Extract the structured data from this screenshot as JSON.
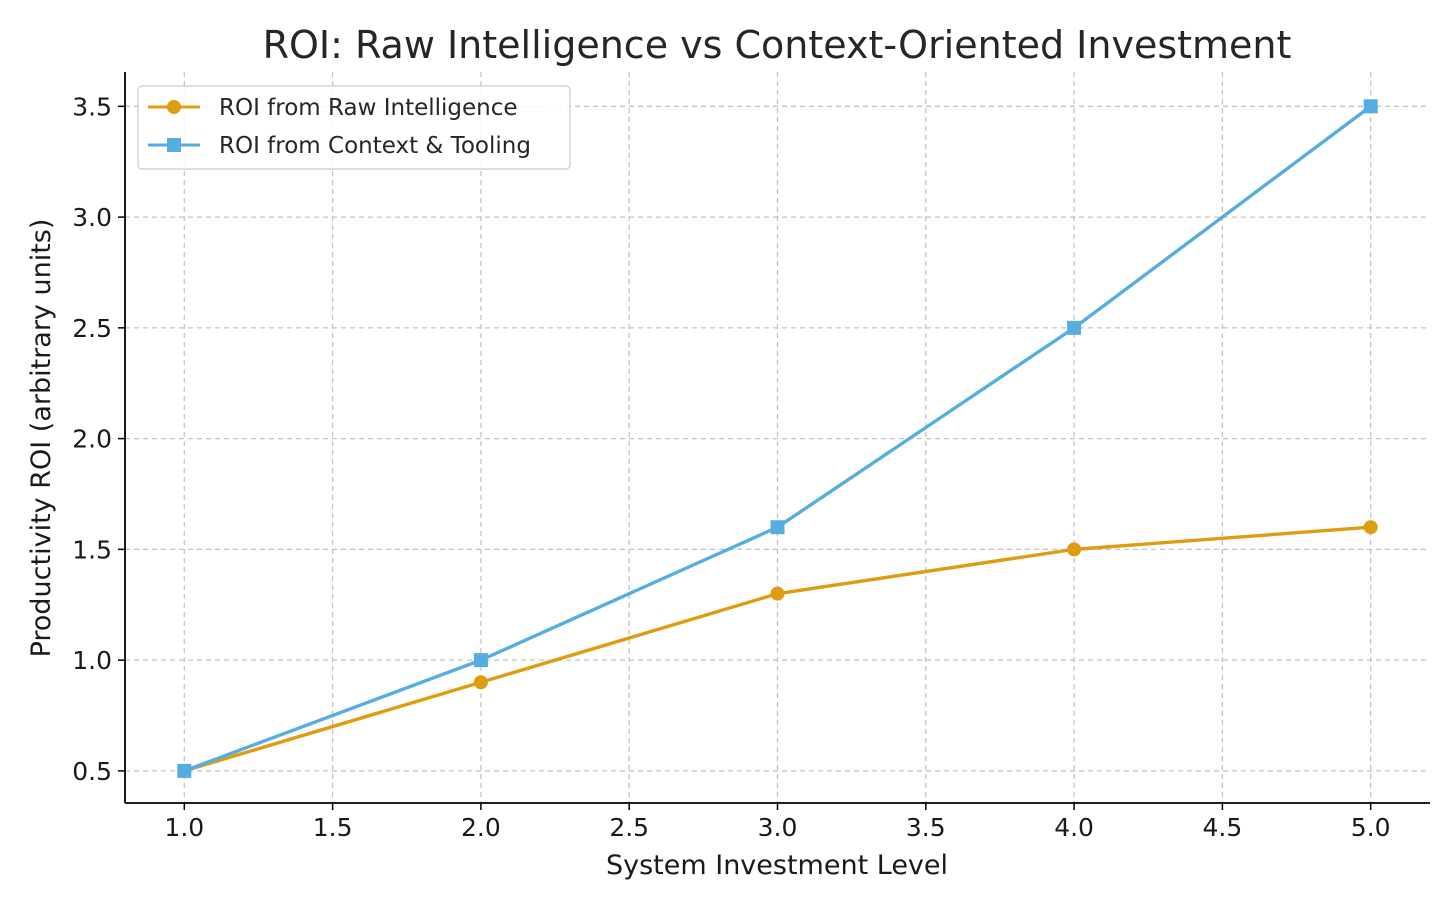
{
  "chart_data": {
    "type": "line",
    "title": "ROI: Raw Intelligence vs Context-Oriented Investment",
    "xlabel": "System Investment Level",
    "ylabel": "Productivity ROI (arbitrary units)",
    "x": [
      1.0,
      2.0,
      3.0,
      4.0,
      5.0
    ],
    "xlim": [
      0.8,
      5.2
    ],
    "ylim": [
      0.355,
      3.655
    ],
    "xticks": [
      1.0,
      1.5,
      2.0,
      2.5,
      3.0,
      3.5,
      4.0,
      4.5,
      5.0
    ],
    "xtick_labels": [
      "1.0",
      "1.5",
      "2.0",
      "2.5",
      "3.0",
      "3.5",
      "4.0",
      "4.5",
      "5.0"
    ],
    "yticks": [
      0.5,
      1.0,
      1.5,
      2.0,
      2.5,
      3.0,
      3.5
    ],
    "ytick_labels": [
      "0.5",
      "1.0",
      "1.5",
      "2.0",
      "2.5",
      "3.0",
      "3.5"
    ],
    "grid": true,
    "legend_position": "top-left",
    "series": [
      {
        "name": "ROI from Raw Intelligence",
        "values": [
          0.5,
          0.9,
          1.3,
          1.5,
          1.6
        ],
        "color": "#DE9D11",
        "marker": "circle"
      },
      {
        "name": "ROI from Context & Tooling",
        "values": [
          0.5,
          1.0,
          1.6,
          2.5,
          3.5
        ],
        "color": "#56AEE0",
        "marker": "square"
      }
    ]
  }
}
